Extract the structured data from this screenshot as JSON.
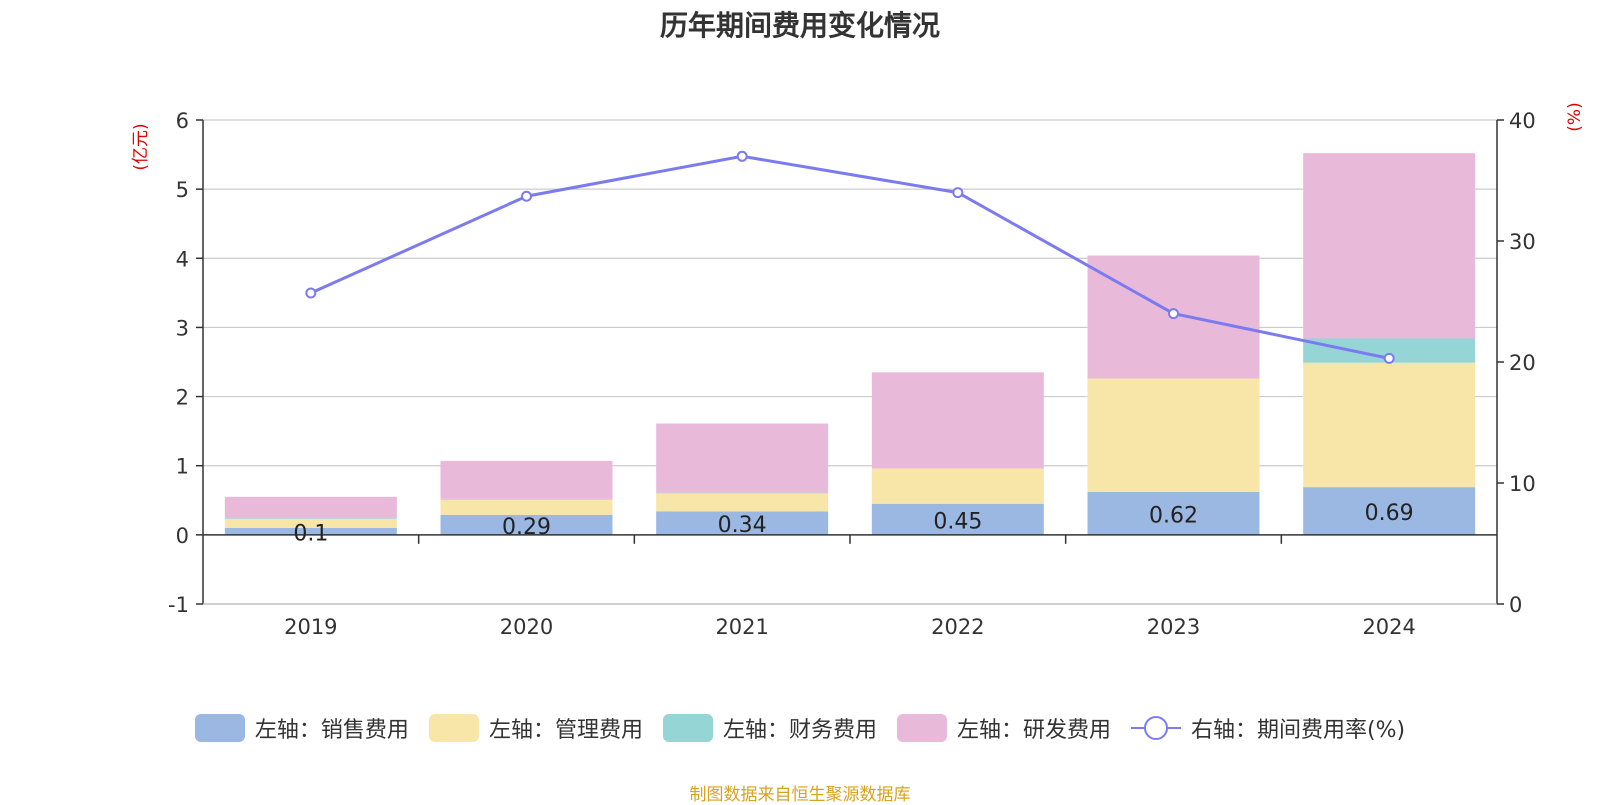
{
  "chart_data": {
    "type": "bar",
    "stacked": true,
    "title": "历年期间费用变化情况",
    "categories": [
      "2019",
      "2020",
      "2021",
      "2022",
      "2023",
      "2024"
    ],
    "y_left": {
      "unit_label": "(亿元)",
      "ylim": [
        -1,
        6
      ],
      "ticks": [
        6,
        5,
        4,
        3,
        2,
        1,
        0,
        -1
      ]
    },
    "y_right": {
      "unit_label": "(%)",
      "ylim": [
        0,
        40
      ],
      "ticks": [
        40,
        30,
        20,
        10,
        0
      ]
    },
    "series": [
      {
        "name": "左轴：销售费用",
        "axis": "left",
        "type": "bar",
        "color": "#9bb8e3",
        "values": [
          0.1,
          0.29,
          0.34,
          0.45,
          0.62,
          0.69
        ],
        "labels": [
          "0.1",
          "0.29",
          "0.34",
          "0.45",
          "0.62",
          "0.69"
        ]
      },
      {
        "name": "左轴：管理费用",
        "axis": "left",
        "type": "bar",
        "color": "#f7e6a7",
        "values": [
          0.13,
          0.22,
          0.26,
          0.51,
          1.64,
          1.8
        ]
      },
      {
        "name": "左轴：财务费用",
        "axis": "left",
        "type": "bar",
        "color": "#95d5d5",
        "values": [
          0.01,
          0.01,
          0.01,
          0.0,
          0.0,
          0.35
        ]
      },
      {
        "name": "左轴：研发费用",
        "axis": "left",
        "type": "bar",
        "color": "#e8b9d9",
        "values": [
          0.31,
          0.55,
          1.0,
          1.39,
          1.78,
          2.68
        ]
      },
      {
        "name": "右轴：期间费用率(%)",
        "axis": "right",
        "type": "line",
        "color": "#7b7bef",
        "values": [
          25.7,
          33.7,
          37.0,
          34.0,
          24.0,
          20.3
        ]
      }
    ],
    "legend_position": "bottom"
  },
  "source_text": "制图数据来自恒生聚源数据库"
}
